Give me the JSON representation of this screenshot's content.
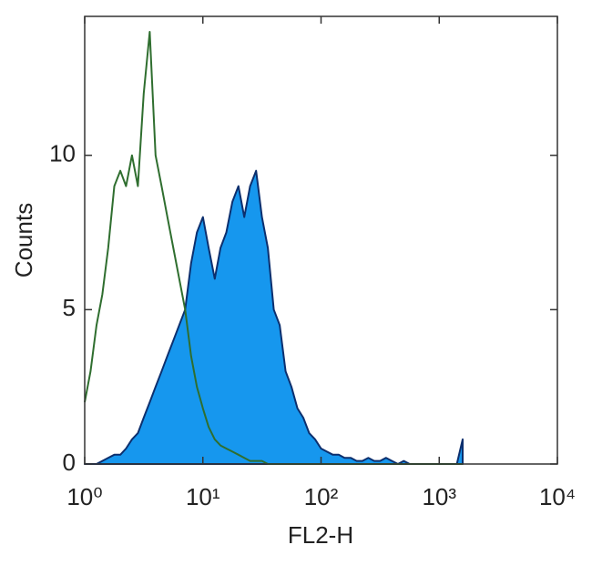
{
  "chart_data": {
    "type": "histogram-overlay",
    "xlabel": "FL2-H",
    "ylabel": "Counts",
    "xscale": "log",
    "grid": false,
    "xlim": [
      1,
      10000
    ],
    "ylim": [
      0,
      14.5
    ],
    "xticks": [
      {
        "value": 1,
        "label": "10⁰"
      },
      {
        "value": 10,
        "label": "10¹"
      },
      {
        "value": 100,
        "label": "10²"
      },
      {
        "value": 1000,
        "label": "10³"
      },
      {
        "value": 10000,
        "label": "10⁴"
      }
    ],
    "yticks": [
      0,
      5,
      10
    ],
    "x": [
      1,
      1.12,
      1.26,
      1.41,
      1.58,
      1.78,
      2,
      2.24,
      2.51,
      2.82,
      3.16,
      3.55,
      3.98,
      4.47,
      5.01,
      5.62,
      6.31,
      7.08,
      7.94,
      8.91,
      10,
      11.2,
      12.6,
      14.1,
      15.8,
      17.8,
      20,
      22.4,
      25.1,
      28.2,
      31.6,
      35.5,
      39.8,
      44.7,
      50.1,
      56.2,
      63.1,
      70.8,
      79.4,
      89.1,
      100,
      112,
      126,
      141,
      158,
      178,
      200,
      224,
      251,
      282,
      316,
      355,
      398,
      447,
      501,
      562,
      631,
      708,
      794,
      891,
      1000,
      1120,
      1260,
      1410,
      1580
    ],
    "series": [
      {
        "style": "area",
        "color": "#1697ee",
        "edge_color": "#0c2f6e",
        "values": [
          0,
          0,
          0,
          0.1,
          0.2,
          0.3,
          0.3,
          0.5,
          0.8,
          1,
          1.5,
          2,
          2.5,
          3,
          3.5,
          4,
          4.5,
          5,
          6.5,
          7.5,
          8,
          7,
          6,
          7,
          7.5,
          8.5,
          9,
          8,
          9,
          9.5,
          8,
          7,
          5,
          4.5,
          3,
          2.5,
          1.8,
          1.5,
          1,
          0.8,
          0.5,
          0.4,
          0.3,
          0.3,
          0.2,
          0.2,
          0.1,
          0.1,
          0.2,
          0.1,
          0.1,
          0.2,
          0.1,
          0,
          0.1,
          0,
          0,
          0,
          0,
          0,
          0,
          0,
          0,
          0,
          0.8
        ]
      },
      {
        "style": "line",
        "color": "#2f6e2f",
        "values": [
          2,
          3,
          4.5,
          5.5,
          7,
          9,
          9.5,
          9,
          10,
          9,
          12,
          14,
          10,
          9,
          8,
          7,
          6,
          5,
          3.5,
          2.5,
          1.8,
          1.2,
          0.8,
          0.6,
          0.5,
          0.4,
          0.3,
          0.2,
          0.1,
          0.1,
          0.1,
          0,
          0,
          0,
          0,
          0,
          0,
          0,
          0,
          0,
          0,
          0,
          0,
          0,
          0,
          0,
          0,
          0,
          0,
          0,
          0,
          0,
          0,
          0,
          0,
          0,
          0,
          0,
          0,
          0,
          0,
          0,
          0,
          0,
          0
        ]
      }
    ]
  }
}
